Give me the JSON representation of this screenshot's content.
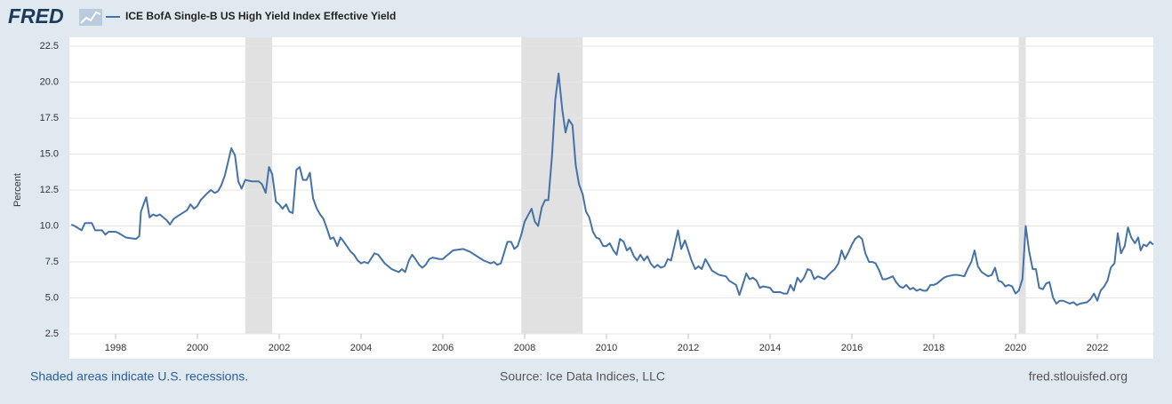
{
  "brand": "FRED",
  "footer": {
    "note": "Shaded areas indicate U.S. recessions.",
    "source": "Source: Ice Data Indices, LLC",
    "site": "fred.stlouisfed.org"
  },
  "chart_data": {
    "type": "line",
    "ylabel": "Percent",
    "x": [
      1996.92,
      1997.0,
      1997.17,
      1997.25,
      1997.42,
      1997.5,
      1997.67,
      1997.75,
      1997.83,
      1998.0,
      1998.08,
      1998.25,
      1998.5,
      1998.58,
      1998.62,
      1998.67,
      1998.75,
      1998.83,
      1998.92,
      1999.0,
      1999.08,
      1999.25,
      1999.33,
      1999.42,
      1999.58,
      1999.75,
      1999.83,
      1999.92,
      2000.0,
      2000.08,
      2000.25,
      2000.33,
      2000.42,
      2000.5,
      2000.58,
      2000.67,
      2000.83,
      2000.92,
      2001.0,
      2001.08,
      2001.17,
      2001.33,
      2001.5,
      2001.58,
      2001.67,
      2001.75,
      2001.83,
      2001.92,
      2002.0,
      2002.08,
      2002.17,
      2002.25,
      2002.33,
      2002.42,
      2002.5,
      2002.58,
      2002.67,
      2002.75,
      2002.83,
      2002.92,
      2003.0,
      2003.08,
      2003.17,
      2003.25,
      2003.33,
      2003.42,
      2003.5,
      2003.58,
      2003.75,
      2003.83,
      2003.92,
      2004.0,
      2004.08,
      2004.17,
      2004.33,
      2004.42,
      2004.5,
      2004.58,
      2004.75,
      2004.83,
      2004.92,
      2005.0,
      2005.08,
      2005.17,
      2005.25,
      2005.33,
      2005.42,
      2005.5,
      2005.58,
      2005.67,
      2005.75,
      2005.92,
      2006.0,
      2006.08,
      2006.25,
      2006.5,
      2006.67,
      2006.83,
      2007.0,
      2007.17,
      2007.25,
      2007.33,
      2007.42,
      2007.58,
      2007.67,
      2007.75,
      2007.83,
      2007.92,
      2008.0,
      2008.17,
      2008.25,
      2008.33,
      2008.42,
      2008.5,
      2008.58,
      2008.67,
      2008.75,
      2008.83,
      2008.92,
      2009.0,
      2009.08,
      2009.17,
      2009.25,
      2009.33,
      2009.42,
      2009.5,
      2009.58,
      2009.67,
      2009.75,
      2009.83,
      2009.92,
      2010.0,
      2010.08,
      2010.17,
      2010.25,
      2010.33,
      2010.42,
      2010.5,
      2010.58,
      2010.67,
      2010.75,
      2010.83,
      2010.92,
      2011.0,
      2011.08,
      2011.17,
      2011.25,
      2011.33,
      2011.42,
      2011.5,
      2011.58,
      2011.75,
      2011.83,
      2011.92,
      2012.0,
      2012.08,
      2012.17,
      2012.25,
      2012.33,
      2012.42,
      2012.5,
      2012.58,
      2012.75,
      2012.92,
      2013.0,
      2013.17,
      2013.25,
      2013.33,
      2013.42,
      2013.5,
      2013.58,
      2013.67,
      2013.75,
      2013.83,
      2014.0,
      2014.08,
      2014.25,
      2014.33,
      2014.42,
      2014.5,
      2014.58,
      2014.67,
      2014.75,
      2014.83,
      2014.92,
      2015.0,
      2015.08,
      2015.17,
      2015.25,
      2015.33,
      2015.5,
      2015.58,
      2015.67,
      2015.75,
      2015.83,
      2015.92,
      2016.0,
      2016.08,
      2016.17,
      2016.25,
      2016.33,
      2016.42,
      2016.5,
      2016.58,
      2016.67,
      2016.75,
      2016.83,
      2016.92,
      2017.0,
      2017.08,
      2017.17,
      2017.25,
      2017.33,
      2017.42,
      2017.5,
      2017.58,
      2017.67,
      2017.75,
      2017.83,
      2017.92,
      2018.0,
      2018.08,
      2018.25,
      2018.33,
      2018.5,
      2018.58,
      2018.75,
      2018.83,
      2018.92,
      2019.0,
      2019.08,
      2019.17,
      2019.33,
      2019.42,
      2019.5,
      2019.58,
      2019.67,
      2019.75,
      2019.83,
      2019.92,
      2020.0,
      2020.08,
      2020.17,
      2020.25,
      2020.33,
      2020.42,
      2020.5,
      2020.58,
      2020.67,
      2020.75,
      2020.83,
      2020.92,
      2021.0,
      2021.08,
      2021.17,
      2021.33,
      2021.42,
      2021.5,
      2021.58,
      2021.75,
      2021.83,
      2021.92,
      2022.0,
      2022.08,
      2022.17,
      2022.25,
      2022.33,
      2022.42,
      2022.5,
      2022.58,
      2022.67,
      2022.75,
      2022.83,
      2022.92,
      2023.0,
      2023.06,
      2023.13,
      2023.21,
      2023.29,
      2023.37
    ],
    "series": [
      {
        "name": "ICE BofA Single-B US High Yield Index Effective Yield",
        "color": "#4572a7",
        "values": [
          10.1,
          10.0,
          9.7,
          10.2,
          10.2,
          9.7,
          9.7,
          9.4,
          9.6,
          9.6,
          9.5,
          9.2,
          9.1,
          9.3,
          11.0,
          11.4,
          12.0,
          10.6,
          10.8,
          10.7,
          10.8,
          10.4,
          10.1,
          10.5,
          10.8,
          11.1,
          11.5,
          11.2,
          11.4,
          11.8,
          12.3,
          12.5,
          12.3,
          12.4,
          12.8,
          13.5,
          15.4,
          14.9,
          13.1,
          12.6,
          13.2,
          13.1,
          13.1,
          12.9,
          12.3,
          14.1,
          13.6,
          11.7,
          11.5,
          11.2,
          11.5,
          11.0,
          10.9,
          13.9,
          14.1,
          13.2,
          13.2,
          13.7,
          11.9,
          11.2,
          10.8,
          10.5,
          9.8,
          9.1,
          9.2,
          8.6,
          9.2,
          8.9,
          8.2,
          8.0,
          7.6,
          7.4,
          7.5,
          7.4,
          8.1,
          8.0,
          7.7,
          7.4,
          7.0,
          6.9,
          6.8,
          7.0,
          6.8,
          7.6,
          8.0,
          7.7,
          7.3,
          7.1,
          7.3,
          7.7,
          7.8,
          7.7,
          7.7,
          7.9,
          8.3,
          8.4,
          8.2,
          7.9,
          7.6,
          7.4,
          7.5,
          7.3,
          7.4,
          8.9,
          8.9,
          8.4,
          8.6,
          9.4,
          10.3,
          11.2,
          10.3,
          10.0,
          11.3,
          11.8,
          11.8,
          14.9,
          18.8,
          20.6,
          18.1,
          16.5,
          17.4,
          17.0,
          14.2,
          12.9,
          12.2,
          11.0,
          10.6,
          9.6,
          9.2,
          9.1,
          8.6,
          8.6,
          8.8,
          8.3,
          8.0,
          9.1,
          8.9,
          8.3,
          8.5,
          7.9,
          7.6,
          8.0,
          7.6,
          7.9,
          7.4,
          7.1,
          7.3,
          7.1,
          7.2,
          7.7,
          7.6,
          9.7,
          8.4,
          9.0,
          8.3,
          7.6,
          7.0,
          7.2,
          7.0,
          7.7,
          7.3,
          6.9,
          6.6,
          6.5,
          6.2,
          5.9,
          5.2,
          5.9,
          6.7,
          6.3,
          6.4,
          6.2,
          5.7,
          5.8,
          5.7,
          5.4,
          5.4,
          5.3,
          5.3,
          5.9,
          5.5,
          6.4,
          6.1,
          6.4,
          7.0,
          6.9,
          6.3,
          6.5,
          6.4,
          6.3,
          6.8,
          7.0,
          7.4,
          8.3,
          7.7,
          8.2,
          8.7,
          9.1,
          9.3,
          9.1,
          8.1,
          7.5,
          7.5,
          7.4,
          6.9,
          6.3,
          6.3,
          6.4,
          6.5,
          6.1,
          5.8,
          5.7,
          5.9,
          5.6,
          5.7,
          5.5,
          5.6,
          5.5,
          5.5,
          5.9,
          5.9,
          6.0,
          6.4,
          6.5,
          6.6,
          6.6,
          6.5,
          7.0,
          7.5,
          8.3,
          7.2,
          6.8,
          6.5,
          6.6,
          7.1,
          6.2,
          6.1,
          5.8,
          5.9,
          5.8,
          5.3,
          5.5,
          6.3,
          10.0,
          8.3,
          7.0,
          7.0,
          5.7,
          5.6,
          6.0,
          6.1,
          5.0,
          4.6,
          4.8,
          4.8,
          4.6,
          4.7,
          4.5,
          4.6,
          4.7,
          4.9,
          5.3,
          4.8,
          5.5,
          5.8,
          6.2,
          7.1,
          7.4,
          9.5,
          8.1,
          8.6,
          9.9,
          9.2,
          8.8,
          9.2,
          8.3,
          8.7,
          8.6,
          8.9,
          8.7
        ]
      }
    ],
    "xlim": [
      1996.87,
      2023.37
    ],
    "xticks": [
      1998,
      2000,
      2002,
      2004,
      2006,
      2008,
      2010,
      2012,
      2014,
      2016,
      2018,
      2020,
      2022
    ],
    "ylim": [
      2.5,
      22.5
    ],
    "yticks": [
      2.5,
      {
        "value": 5,
        "label": "5.0"
      },
      7.5,
      {
        "value": 10,
        "label": "10.0"
      },
      12.5,
      {
        "value": 15,
        "label": "15.0"
      },
      17.5,
      {
        "value": 20,
        "label": "20.0"
      },
      22.5
    ],
    "recessions": [
      [
        2001.17,
        2001.83
      ],
      [
        2007.92,
        2009.42
      ],
      [
        2020.08,
        2020.25
      ]
    ],
    "grid": true
  }
}
